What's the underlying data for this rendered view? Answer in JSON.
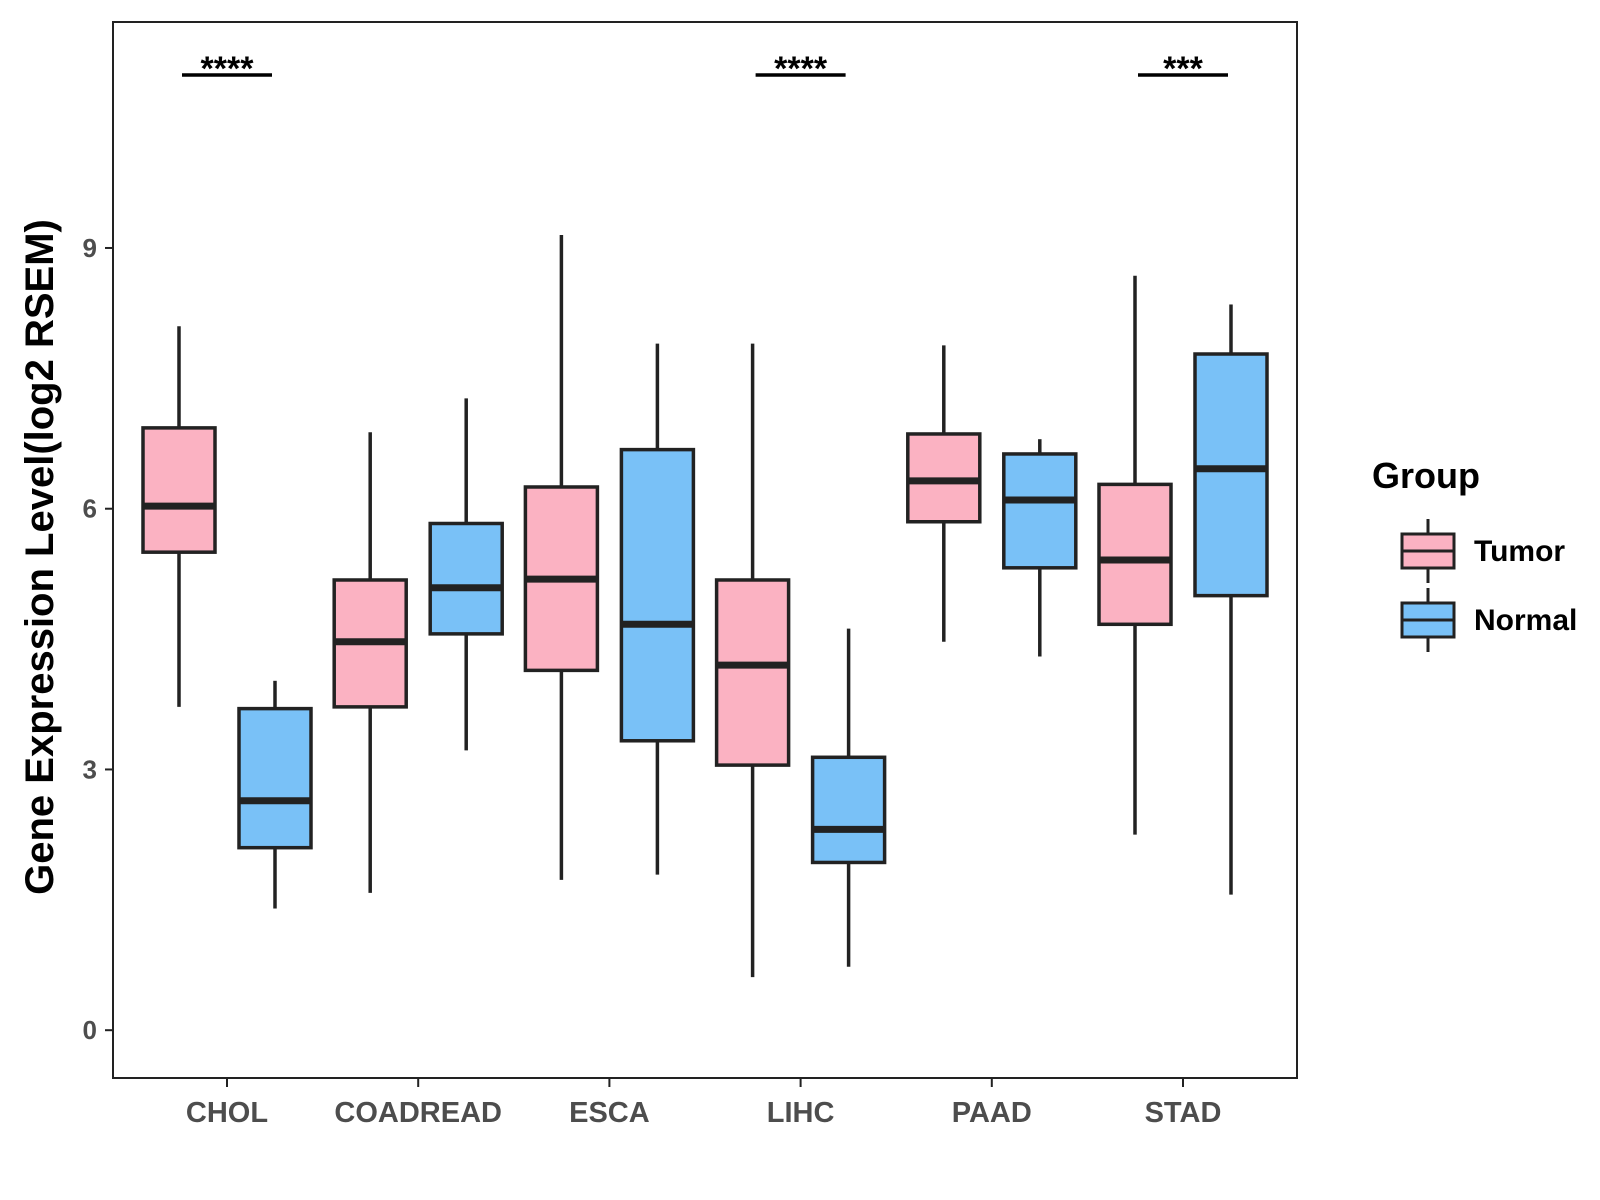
{
  "chart_data": {
    "type": "boxplot",
    "title": "",
    "xlabel": "",
    "ylabel": "Gene Expression Level(log2 RSEM)",
    "ylim": [
      -0.55,
      11.6
    ],
    "yticks": [
      "0",
      "3",
      "6",
      "9"
    ],
    "ytick_values": [
      0,
      3,
      6,
      9
    ],
    "categories": [
      "CHOL",
      "COADREAD",
      "ESCA",
      "LIHC",
      "PAAD",
      "STAD"
    ],
    "legend": {
      "title": "Group",
      "position": "right"
    },
    "series": [
      {
        "name": "Tumor",
        "color": "#FBB2C2",
        "boxes": [
          {
            "category": "CHOL",
            "min": 3.72,
            "q1": 5.5,
            "median": 6.03,
            "q3": 6.93,
            "max": 8.1
          },
          {
            "category": "COADREAD",
            "min": 1.58,
            "q1": 3.72,
            "median": 4.47,
            "q3": 5.18,
            "max": 6.88
          },
          {
            "category": "ESCA",
            "min": 1.73,
            "q1": 4.14,
            "median": 5.19,
            "q3": 6.25,
            "max": 9.15
          },
          {
            "category": "LIHC",
            "min": 0.61,
            "q1": 3.05,
            "median": 4.2,
            "q3": 5.18,
            "max": 7.9
          },
          {
            "category": "PAAD",
            "min": 4.47,
            "q1": 5.85,
            "median": 6.32,
            "q3": 6.86,
            "max": 7.88
          },
          {
            "category": "STAD",
            "min": 2.25,
            "q1": 4.67,
            "median": 5.41,
            "q3": 6.28,
            "max": 8.68
          }
        ]
      },
      {
        "name": "Normal",
        "color": "#79C1F7",
        "boxes": [
          {
            "category": "CHOL",
            "min": 1.4,
            "q1": 2.1,
            "median": 2.64,
            "q3": 3.7,
            "max": 4.02
          },
          {
            "category": "COADREAD",
            "min": 3.22,
            "q1": 4.56,
            "median": 5.09,
            "q3": 5.83,
            "max": 7.27
          },
          {
            "category": "ESCA",
            "min": 1.79,
            "q1": 3.33,
            "median": 4.67,
            "q3": 6.68,
            "max": 7.9
          },
          {
            "category": "LIHC",
            "min": 0.73,
            "q1": 1.93,
            "median": 2.31,
            "q3": 3.14,
            "max": 4.62
          },
          {
            "category": "PAAD",
            "min": 4.3,
            "q1": 5.32,
            "median": 6.1,
            "q3": 6.63,
            "max": 6.8
          },
          {
            "category": "STAD",
            "min": 1.56,
            "q1": 5.0,
            "median": 6.46,
            "q3": 7.78,
            "max": 8.35
          }
        ]
      }
    ],
    "significance": [
      {
        "category": "CHOL",
        "label": "****"
      },
      {
        "category": "LIHC",
        "label": "****"
      },
      {
        "category": "STAD",
        "label": "***"
      }
    ]
  }
}
